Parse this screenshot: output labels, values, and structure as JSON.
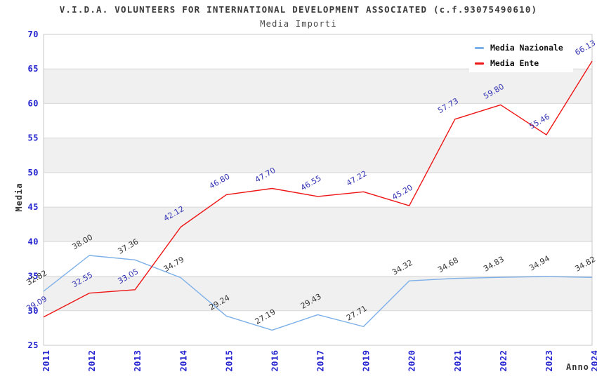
{
  "chart_data": {
    "type": "line",
    "title": "V.I.D.A. VOLUNTEERS FOR INTERNATIONAL DEVELOPMENT ASSOCIATED (c.f.93075490610)",
    "subtitle": "Media Importi",
    "xlabel": "Anno",
    "ylabel": "Media",
    "ylim": [
      25,
      70
    ],
    "ytick_step": 5,
    "grid": true,
    "background_bands": true,
    "legend_position": "top-right",
    "categories": [
      "2011",
      "2012",
      "2013",
      "2014",
      "2015",
      "2016",
      "2017",
      "2019",
      "2020",
      "2021",
      "2022",
      "2023",
      "2024"
    ],
    "series": [
      {
        "name": "Media Nazionale",
        "color": "#7db0e8",
        "label_color": "#333333",
        "values": [
          32.82,
          38.0,
          37.36,
          34.79,
          29.24,
          27.19,
          29.43,
          27.71,
          34.32,
          34.68,
          34.83,
          34.94,
          34.82
        ]
      },
      {
        "name": "Media Ente",
        "color": "#ee1515",
        "label_color": "#3434b4",
        "values": [
          29.09,
          32.55,
          33.05,
          42.12,
          46.8,
          47.7,
          46.55,
          47.22,
          45.2,
          57.73,
          59.8,
          55.46,
          66.13
        ]
      }
    ]
  },
  "colors": {
    "axis_tick": "#2323cf",
    "band": "#f0f0f0",
    "grid": "#d8d8d8",
    "border": "#c9c9c9",
    "title": "#3a3a3a",
    "subtitle": "#474747",
    "axis_title": "#333333",
    "legend_text": "#111111",
    "legend_bg": "#ffffff",
    "plot_bg": "#ffffff"
  }
}
